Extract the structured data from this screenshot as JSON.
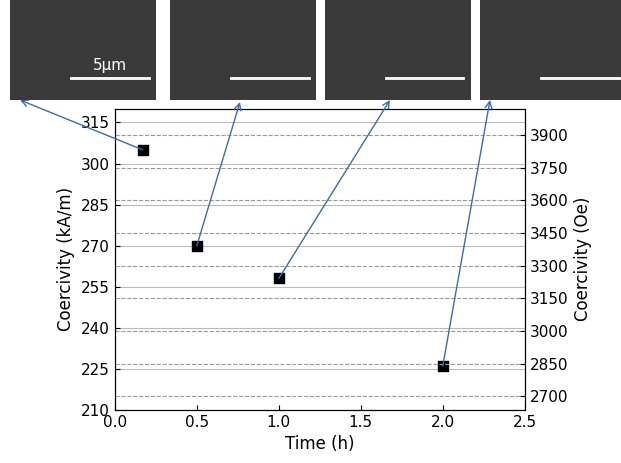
{
  "chart_data": {
    "type": "scatter",
    "x": [
      0.17,
      0.5,
      1.0,
      2.0
    ],
    "values": [
      305,
      270,
      258,
      226
    ],
    "color": "#000000",
    "marker": "s",
    "xlabel": "Time (h)",
    "ylabel": "Coercivity (kA/m)",
    "y2label": "Coercivity (Oe)",
    "xlim": [
      0.0,
      2.5
    ],
    "xticks": [
      0.0,
      0.5,
      1.0,
      1.5,
      2.0,
      2.5
    ],
    "ylim": [
      210,
      320
    ],
    "yticks": [
      210,
      225,
      240,
      255,
      270,
      285,
      300,
      315
    ],
    "y2lim": [
      2639,
      4021
    ],
    "y2ticks": [
      2700,
      2850,
      3000,
      3150,
      3300,
      3450,
      3600,
      3750,
      3900
    ],
    "grid": true,
    "annotations": [
      "5μm"
    ]
  }
}
